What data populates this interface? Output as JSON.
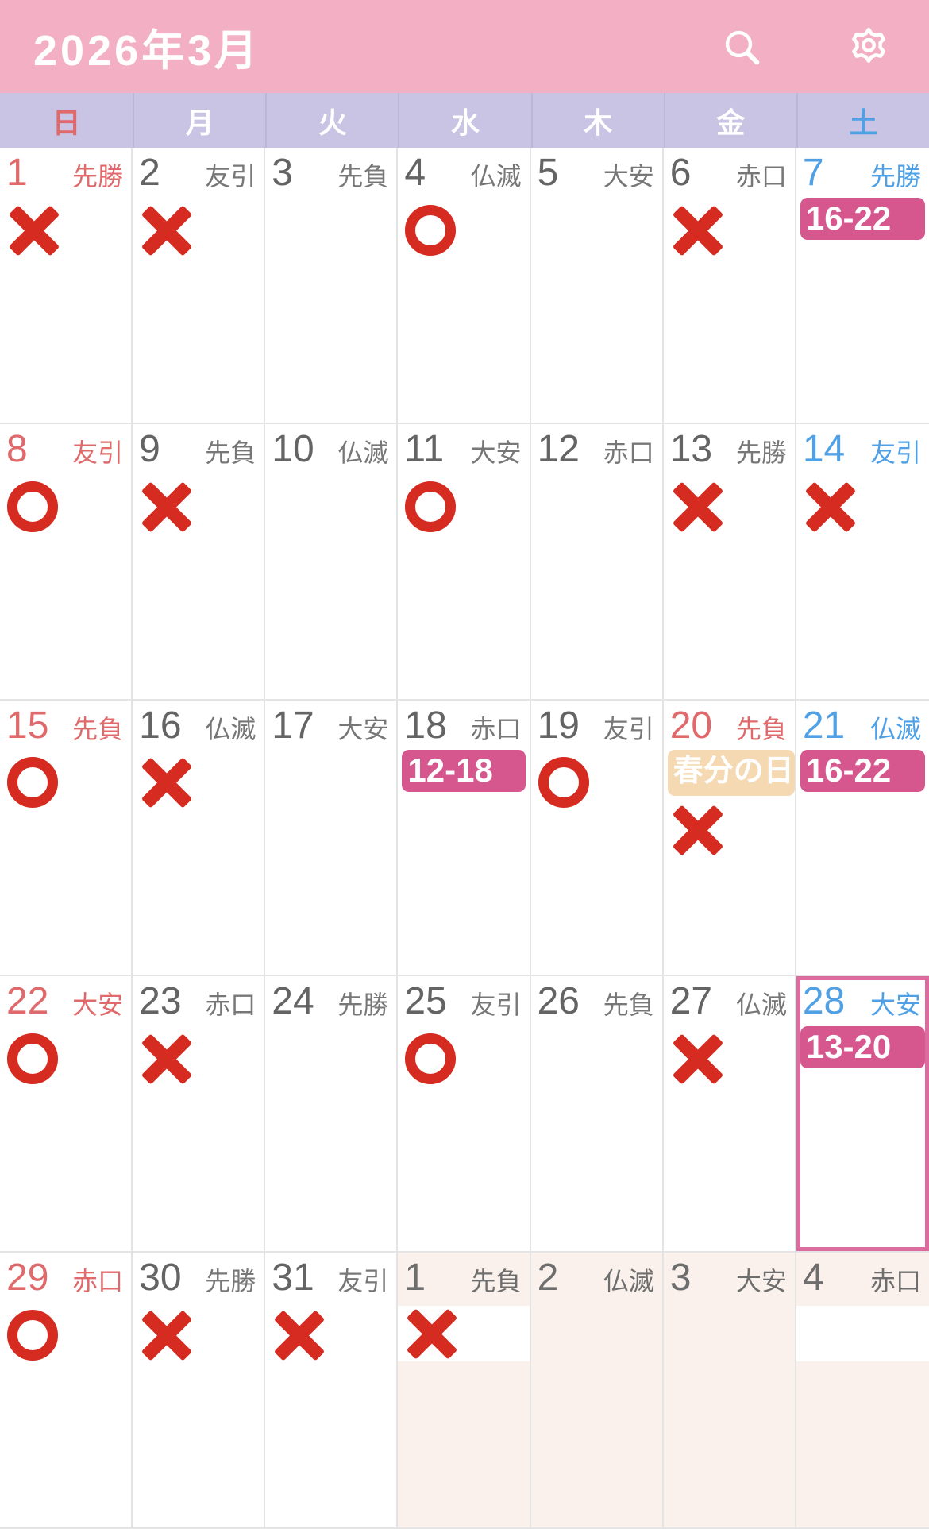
{
  "header": {
    "title": "2026年3月",
    "search_icon": "search-icon",
    "settings_icon": "gear-icon"
  },
  "weekday_row": [
    {
      "label": "日",
      "type": "sun"
    },
    {
      "label": "月",
      "type": "weekday"
    },
    {
      "label": "火",
      "type": "weekday"
    },
    {
      "label": "水",
      "type": "weekday"
    },
    {
      "label": "木",
      "type": "weekday"
    },
    {
      "label": "金",
      "type": "weekday"
    },
    {
      "label": "土",
      "type": "sat"
    }
  ],
  "weeks": [
    [
      {
        "day": "1",
        "rokuyo": "先勝",
        "type": "sun",
        "mark": "x"
      },
      {
        "day": "2",
        "rokuyo": "友引",
        "mark": "x"
      },
      {
        "day": "3",
        "rokuyo": "先負"
      },
      {
        "day": "4",
        "rokuyo": "仏滅",
        "mark": "o"
      },
      {
        "day": "5",
        "rokuyo": "大安"
      },
      {
        "day": "6",
        "rokuyo": "赤口",
        "mark": "x"
      },
      {
        "day": "7",
        "rokuyo": "先勝",
        "type": "sat",
        "badge": "16-22"
      }
    ],
    [
      {
        "day": "8",
        "rokuyo": "友引",
        "type": "sun",
        "mark": "o"
      },
      {
        "day": "9",
        "rokuyo": "先負",
        "mark": "x"
      },
      {
        "day": "10",
        "rokuyo": "仏滅"
      },
      {
        "day": "11",
        "rokuyo": "大安",
        "mark": "o"
      },
      {
        "day": "12",
        "rokuyo": "赤口"
      },
      {
        "day": "13",
        "rokuyo": "先勝",
        "mark": "x"
      },
      {
        "day": "14",
        "rokuyo": "友引",
        "type": "sat",
        "mark": "x"
      }
    ],
    [
      {
        "day": "15",
        "rokuyo": "先負",
        "type": "sun",
        "mark": "o"
      },
      {
        "day": "16",
        "rokuyo": "仏滅",
        "mark": "x"
      },
      {
        "day": "17",
        "rokuyo": "大安"
      },
      {
        "day": "18",
        "rokuyo": "赤口",
        "badge": "12-18"
      },
      {
        "day": "19",
        "rokuyo": "友引",
        "mark": "o"
      },
      {
        "day": "20",
        "rokuyo": "先負",
        "type": "holiday",
        "holiday": "春分の日",
        "mark": "x"
      },
      {
        "day": "21",
        "rokuyo": "仏滅",
        "type": "sat",
        "badge": "16-22"
      }
    ],
    [
      {
        "day": "22",
        "rokuyo": "大安",
        "type": "sun",
        "mark": "o"
      },
      {
        "day": "23",
        "rokuyo": "赤口",
        "mark": "x"
      },
      {
        "day": "24",
        "rokuyo": "先勝"
      },
      {
        "day": "25",
        "rokuyo": "友引",
        "mark": "o"
      },
      {
        "day": "26",
        "rokuyo": "先負"
      },
      {
        "day": "27",
        "rokuyo": "仏滅",
        "mark": "x"
      },
      {
        "day": "28",
        "rokuyo": "大安",
        "type": "sat",
        "badge": "13-20",
        "selected": true
      }
    ],
    [
      {
        "day": "29",
        "rokuyo": "赤口",
        "type": "sun",
        "mark": "o"
      },
      {
        "day": "30",
        "rokuyo": "先勝",
        "mark": "x"
      },
      {
        "day": "31",
        "rokuyo": "友引",
        "mark": "x"
      },
      {
        "day": "1",
        "rokuyo": "先負",
        "other": true,
        "mark": "x",
        "band": true
      },
      {
        "day": "2",
        "rokuyo": "仏滅",
        "other": true
      },
      {
        "day": "3",
        "rokuyo": "大安",
        "other": true
      },
      {
        "day": "4",
        "rokuyo": "赤口",
        "other": true,
        "band": true
      }
    ]
  ],
  "colors": {
    "header_pink": "#F3B0C4",
    "dow_lavender": "#C9C4E4",
    "sunday_red": "#E0696B",
    "saturday_blue": "#4FA0E5",
    "weekday_gray": "#646464",
    "rokuyo_gray": "#777777",
    "badge_pink": "#D6578E",
    "holiday_peach": "#F5D9B2",
    "mark_red": "#D52B20",
    "selected_border": "#DC6BA0",
    "next_month_bg": "#FAF1ED",
    "grid_line": "#E4E4E4"
  }
}
